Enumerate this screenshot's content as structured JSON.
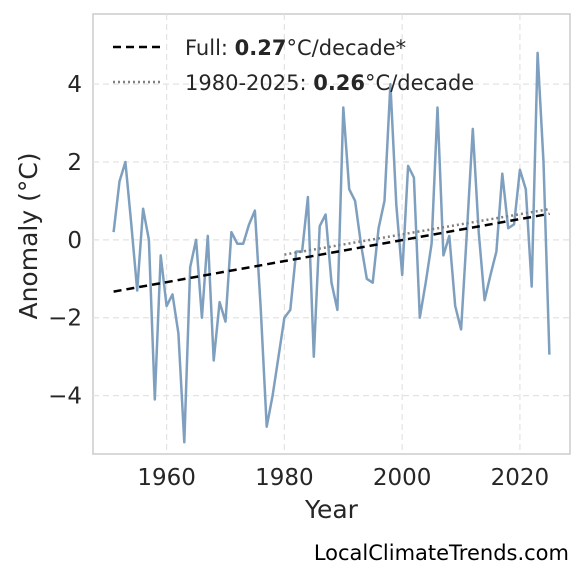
{
  "chart_data": {
    "type": "line",
    "xlabel": "Year",
    "ylabel": "Anomaly (°C)",
    "xlim": [
      1947.5,
      2028.5
    ],
    "ylim": [
      -5.5,
      5.8
    ],
    "xticks": [
      1960,
      1980,
      2000,
      2020
    ],
    "yticks": [
      -4,
      -2,
      0,
      2,
      4
    ],
    "ytick_labels": [
      "−4",
      "−2",
      "0",
      "2",
      "4"
    ],
    "grid": true,
    "legend_position": "top-left",
    "series": [
      {
        "kind": "anomaly",
        "color": "#7f9fbf",
        "x": [
          1951,
          1952,
          1953,
          1954,
          1955,
          1956,
          1957,
          1958,
          1959,
          1960,
          1961,
          1962,
          1963,
          1964,
          1965,
          1966,
          1967,
          1968,
          1969,
          1970,
          1971,
          1972,
          1973,
          1974,
          1975,
          1976,
          1977,
          1978,
          1979,
          1980,
          1981,
          1982,
          1983,
          1984,
          1985,
          1986,
          1987,
          1988,
          1989,
          1990,
          1991,
          1992,
          1993,
          1994,
          1995,
          1996,
          1997,
          1998,
          1999,
          2000,
          2001,
          2002,
          2003,
          2004,
          2005,
          2006,
          2007,
          2008,
          2009,
          2010,
          2011,
          2012,
          2013,
          2014,
          2015,
          2016,
          2017,
          2018,
          2019,
          2020,
          2021,
          2022,
          2023,
          2024,
          2025
        ],
        "y": [
          0.2,
          1.5,
          2.0,
          0.4,
          -1.3,
          0.8,
          0.0,
          -4.1,
          -0.4,
          -1.7,
          -1.4,
          -2.4,
          -5.2,
          -0.7,
          0.0,
          -2.0,
          0.1,
          -3.1,
          -1.6,
          -2.1,
          0.2,
          -0.1,
          -0.1,
          0.4,
          0.75,
          -1.8,
          -4.8,
          -4.0,
          -3.0,
          -2.0,
          -1.8,
          -0.3,
          -0.3,
          1.1,
          -3.0,
          0.35,
          0.65,
          -1.1,
          -1.8,
          3.4,
          1.3,
          1.0,
          -0.1,
          -1.0,
          -1.1,
          0.3,
          1.0,
          4.0,
          0.9,
          -0.9,
          1.9,
          1.6,
          -2.0,
          -1.1,
          -0.1,
          3.4,
          -0.4,
          0.1,
          -1.7,
          -2.3,
          0.2,
          2.85,
          0.2,
          -1.55,
          -0.9,
          -0.3,
          1.7,
          0.3,
          0.4,
          1.8,
          1.3,
          -1.2,
          4.8,
          2.0,
          -2.95
        ]
      },
      {
        "kind": "trend-full",
        "color": "#000000",
        "style": "dashed",
        "x": [
          1951,
          2025
        ],
        "y": [
          -1.33,
          0.67
        ]
      },
      {
        "kind": "trend-recent",
        "color": "#808080",
        "style": "dotted",
        "x": [
          1980,
          2025
        ],
        "y": [
          -0.38,
          0.79
        ]
      }
    ],
    "legend": [
      {
        "prefix": "Full: ",
        "value": "0.27",
        "suffix": "°C/decade*"
      },
      {
        "prefix": "1980-2025: ",
        "value": "0.26",
        "suffix": "°C/decade"
      }
    ]
  },
  "credit": "LocalClimateTrends.com"
}
